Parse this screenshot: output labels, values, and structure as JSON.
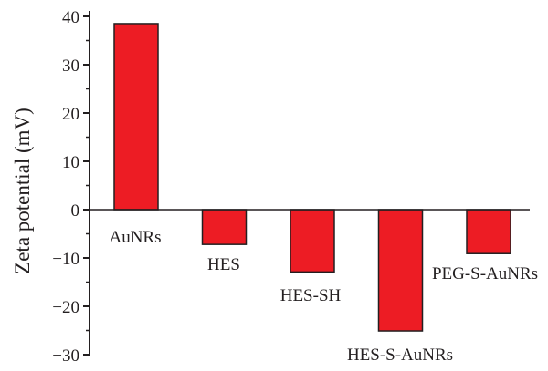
{
  "chart_data": {
    "type": "bar",
    "ylabel": "Zeta potential (mV)",
    "xlabel": "",
    "title": "",
    "categories": [
      "AuNRs",
      "HES",
      "HES-SH",
      "HES-S-AuNRs",
      "PEG-S-AuNRs"
    ],
    "values": [
      38.5,
      -7.2,
      -12.9,
      -25.1,
      -9.1
    ],
    "ylim": [
      -30,
      40
    ],
    "yticks": [
      40,
      30,
      20,
      10,
      0,
      -10,
      -20,
      -30
    ],
    "ytick_labels": [
      "40",
      "30",
      "20",
      "10",
      "0",
      "−10",
      "−20",
      "−30"
    ],
    "grid": false,
    "legend": "none",
    "colors": {
      "bar": "#ed1c24",
      "bar_edge": "#231f20",
      "axis": "#231f20"
    }
  }
}
